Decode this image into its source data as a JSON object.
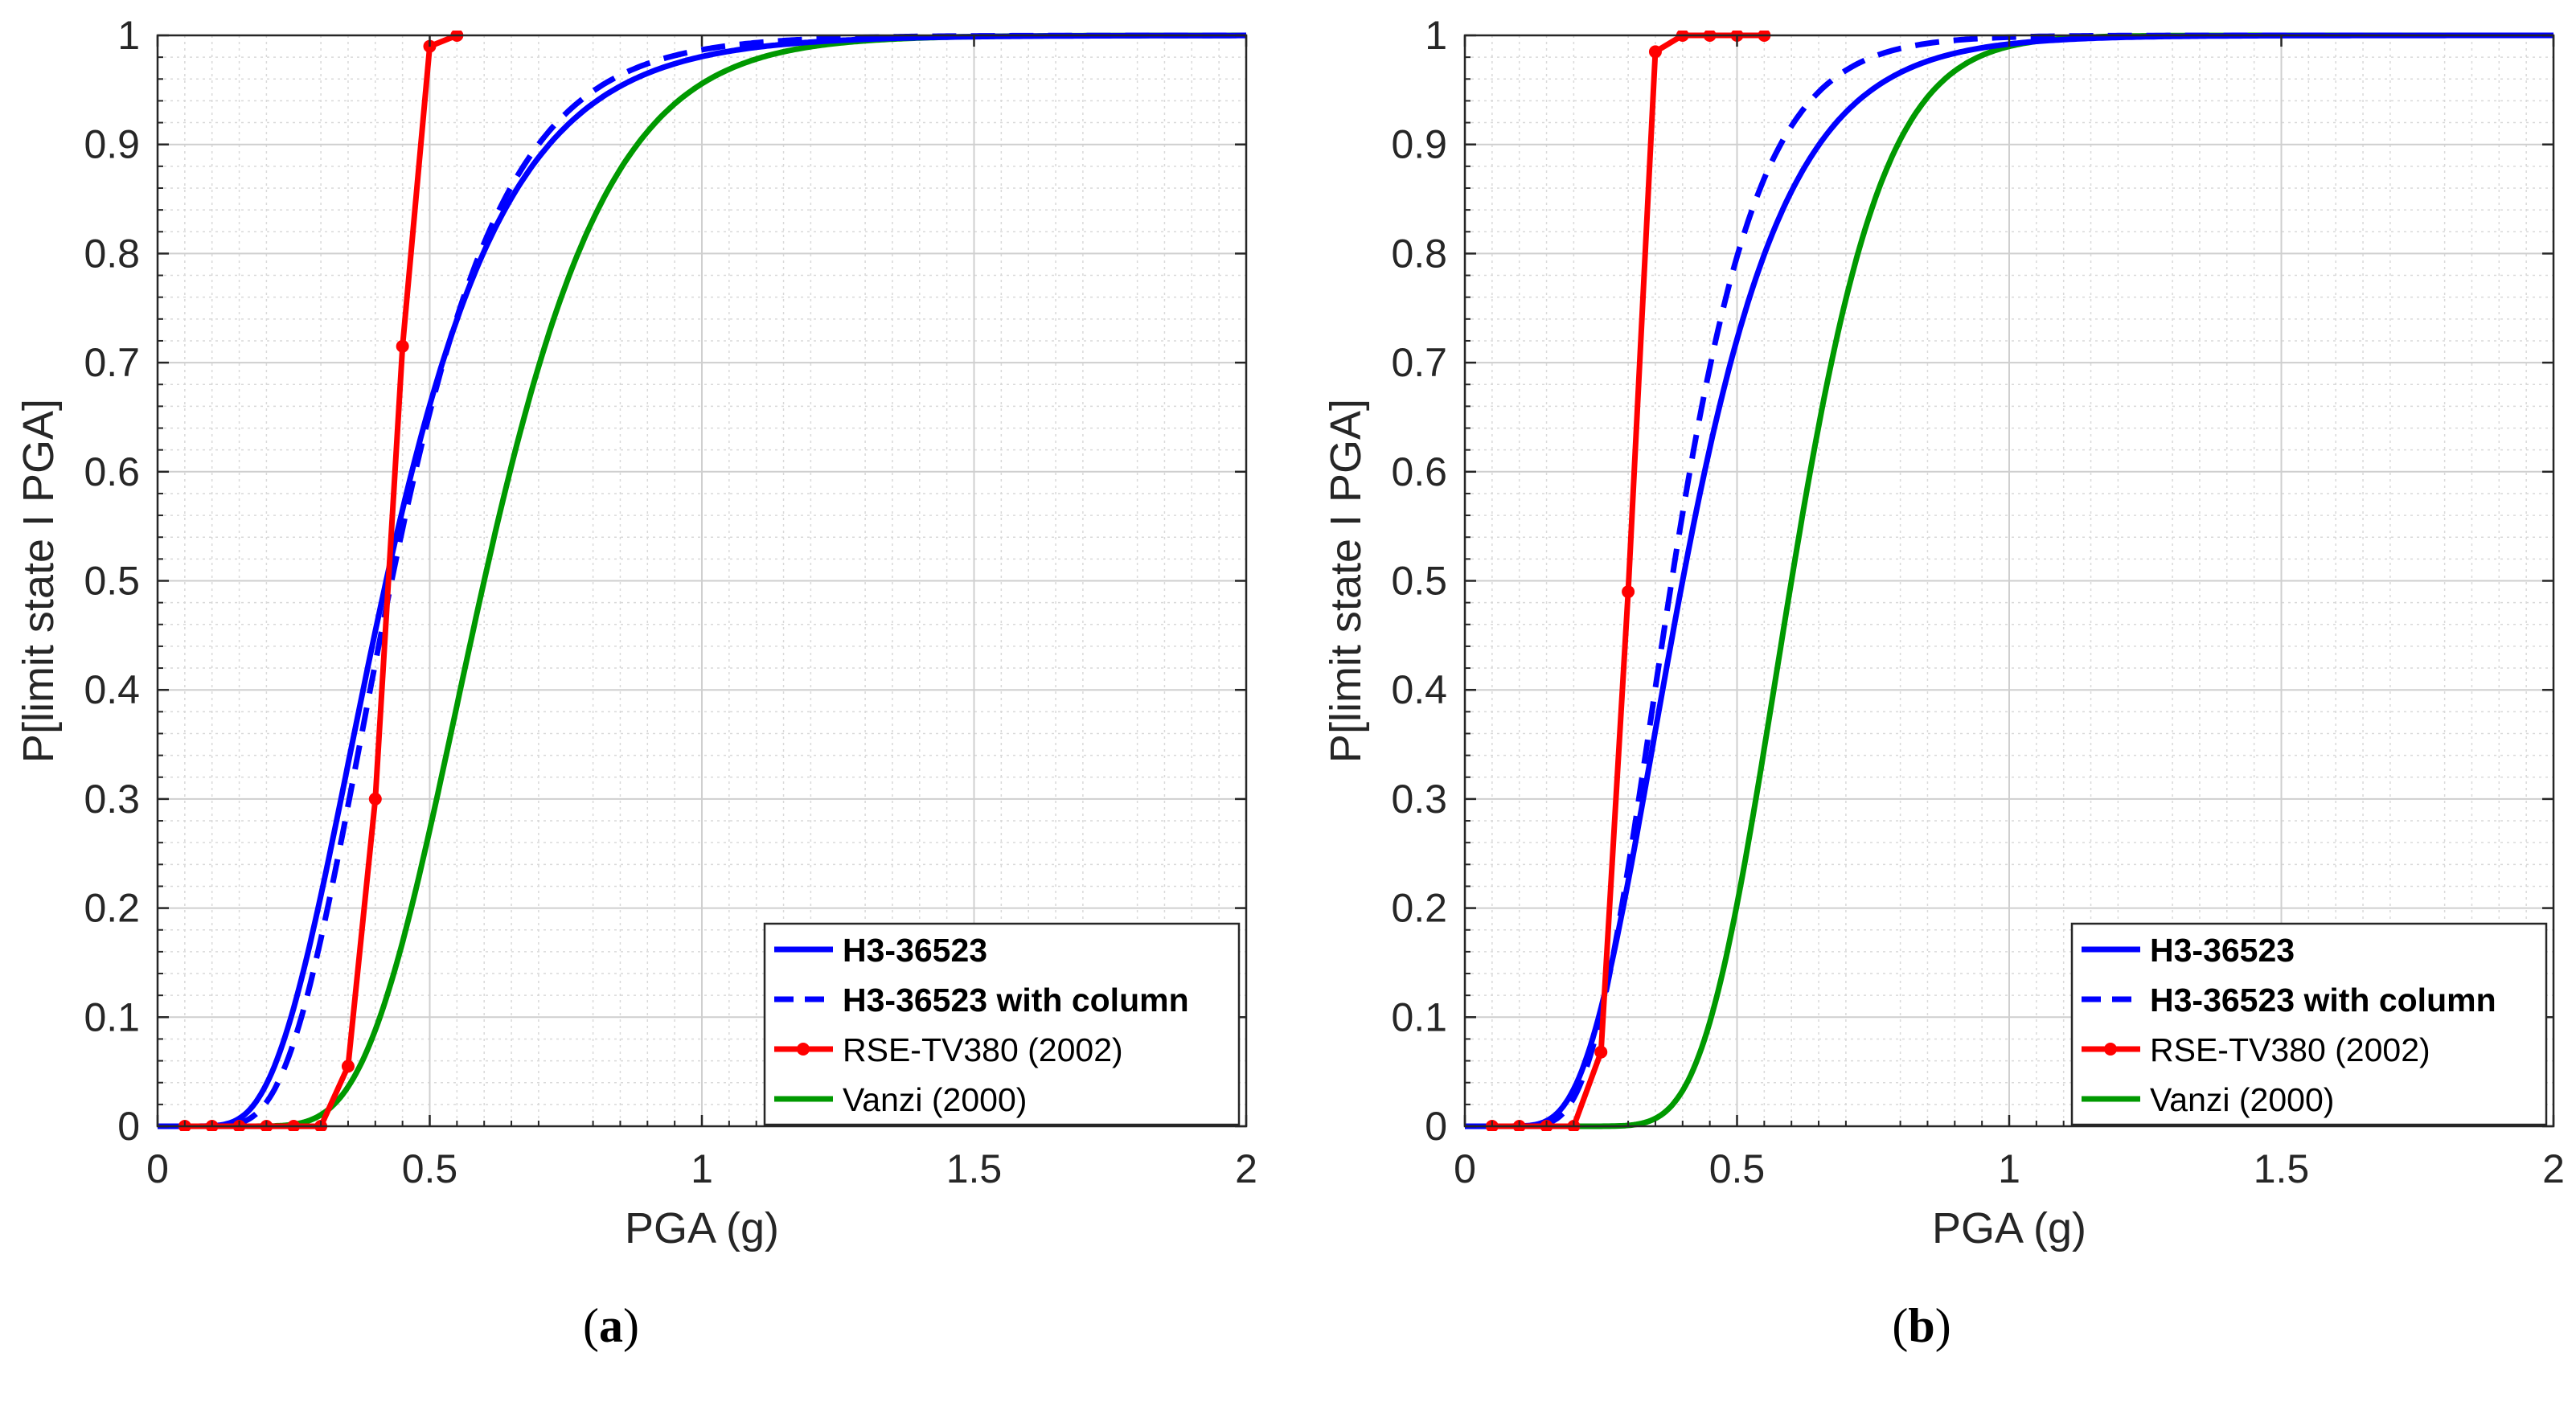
{
  "chart_data": [
    {
      "type": "line",
      "panel": "a",
      "caption_label": "a",
      "xlabel": "PGA (g)",
      "ylabel": "P[limit state I PGA]",
      "xlim": [
        0,
        2
      ],
      "ylim": [
        0,
        1
      ],
      "xticks": [
        "0",
        "0.5",
        "1",
        "1.5",
        "2"
      ],
      "yticks": [
        "0",
        "0.1",
        "0.2",
        "0.3",
        "0.4",
        "0.5",
        "0.6",
        "0.7",
        "0.8",
        "0.9",
        "1"
      ],
      "grid": true,
      "legend_position": "bottom-right",
      "series": [
        {
          "name": "H3-36523",
          "style": "solid",
          "color": "#0000ff",
          "lognormal": {
            "median": 0.42,
            "beta": 0.42
          }
        },
        {
          "name": "H3-36523 with column",
          "style": "dashed",
          "color": "#0000ff",
          "lognormal": {
            "median": 0.43,
            "beta": 0.38
          }
        },
        {
          "name": "RSE-TV380 (2002)",
          "style": "solid-markers",
          "color": "#ff0000",
          "x": [
            0.05,
            0.1,
            0.15,
            0.2,
            0.25,
            0.3,
            0.35,
            0.4,
            0.45,
            0.5,
            0.55
          ],
          "y": [
            0,
            0,
            0,
            0,
            0,
            0,
            0.055,
            0.3,
            0.715,
            0.99,
            1.0
          ]
        },
        {
          "name": "Vanzi (2000)",
          "style": "solid",
          "color": "#009900",
          "lognormal": {
            "median": 0.6,
            "beta": 0.3
          }
        }
      ]
    },
    {
      "type": "line",
      "panel": "b",
      "caption_label": "b",
      "xlabel": "PGA (g)",
      "ylabel": "P[limit state I PGA]",
      "xlim": [
        0,
        2
      ],
      "ylim": [
        0,
        1
      ],
      "xticks": [
        "0",
        "0.5",
        "1",
        "1.5",
        "2"
      ],
      "yticks": [
        "0",
        "0.1",
        "0.2",
        "0.3",
        "0.4",
        "0.5",
        "0.6",
        "0.7",
        "0.8",
        "0.9",
        "1"
      ],
      "grid": true,
      "legend_position": "bottom-right",
      "series": [
        {
          "name": "H3-36523",
          "style": "solid",
          "color": "#0000ff",
          "lognormal": {
            "median": 0.4,
            "beta": 0.38
          }
        },
        {
          "name": "H3-36523 with column",
          "style": "dashed",
          "color": "#0000ff",
          "lognormal": {
            "median": 0.38,
            "beta": 0.33
          }
        },
        {
          "name": "RSE-TV380 (2002)",
          "style": "solid-markers",
          "color": "#ff0000",
          "x": [
            0.05,
            0.1,
            0.15,
            0.2,
            0.25,
            0.3,
            0.35,
            0.4,
            0.45,
            0.5,
            0.55
          ],
          "y": [
            0,
            0,
            0,
            0,
            0.068,
            0.49,
            0.985,
            1.0,
            1.0,
            1.0,
            1.0
          ]
        },
        {
          "name": "Vanzi (2000)",
          "style": "solid",
          "color": "#009900",
          "lognormal": {
            "median": 0.6,
            "beta": 0.22
          }
        }
      ]
    }
  ]
}
